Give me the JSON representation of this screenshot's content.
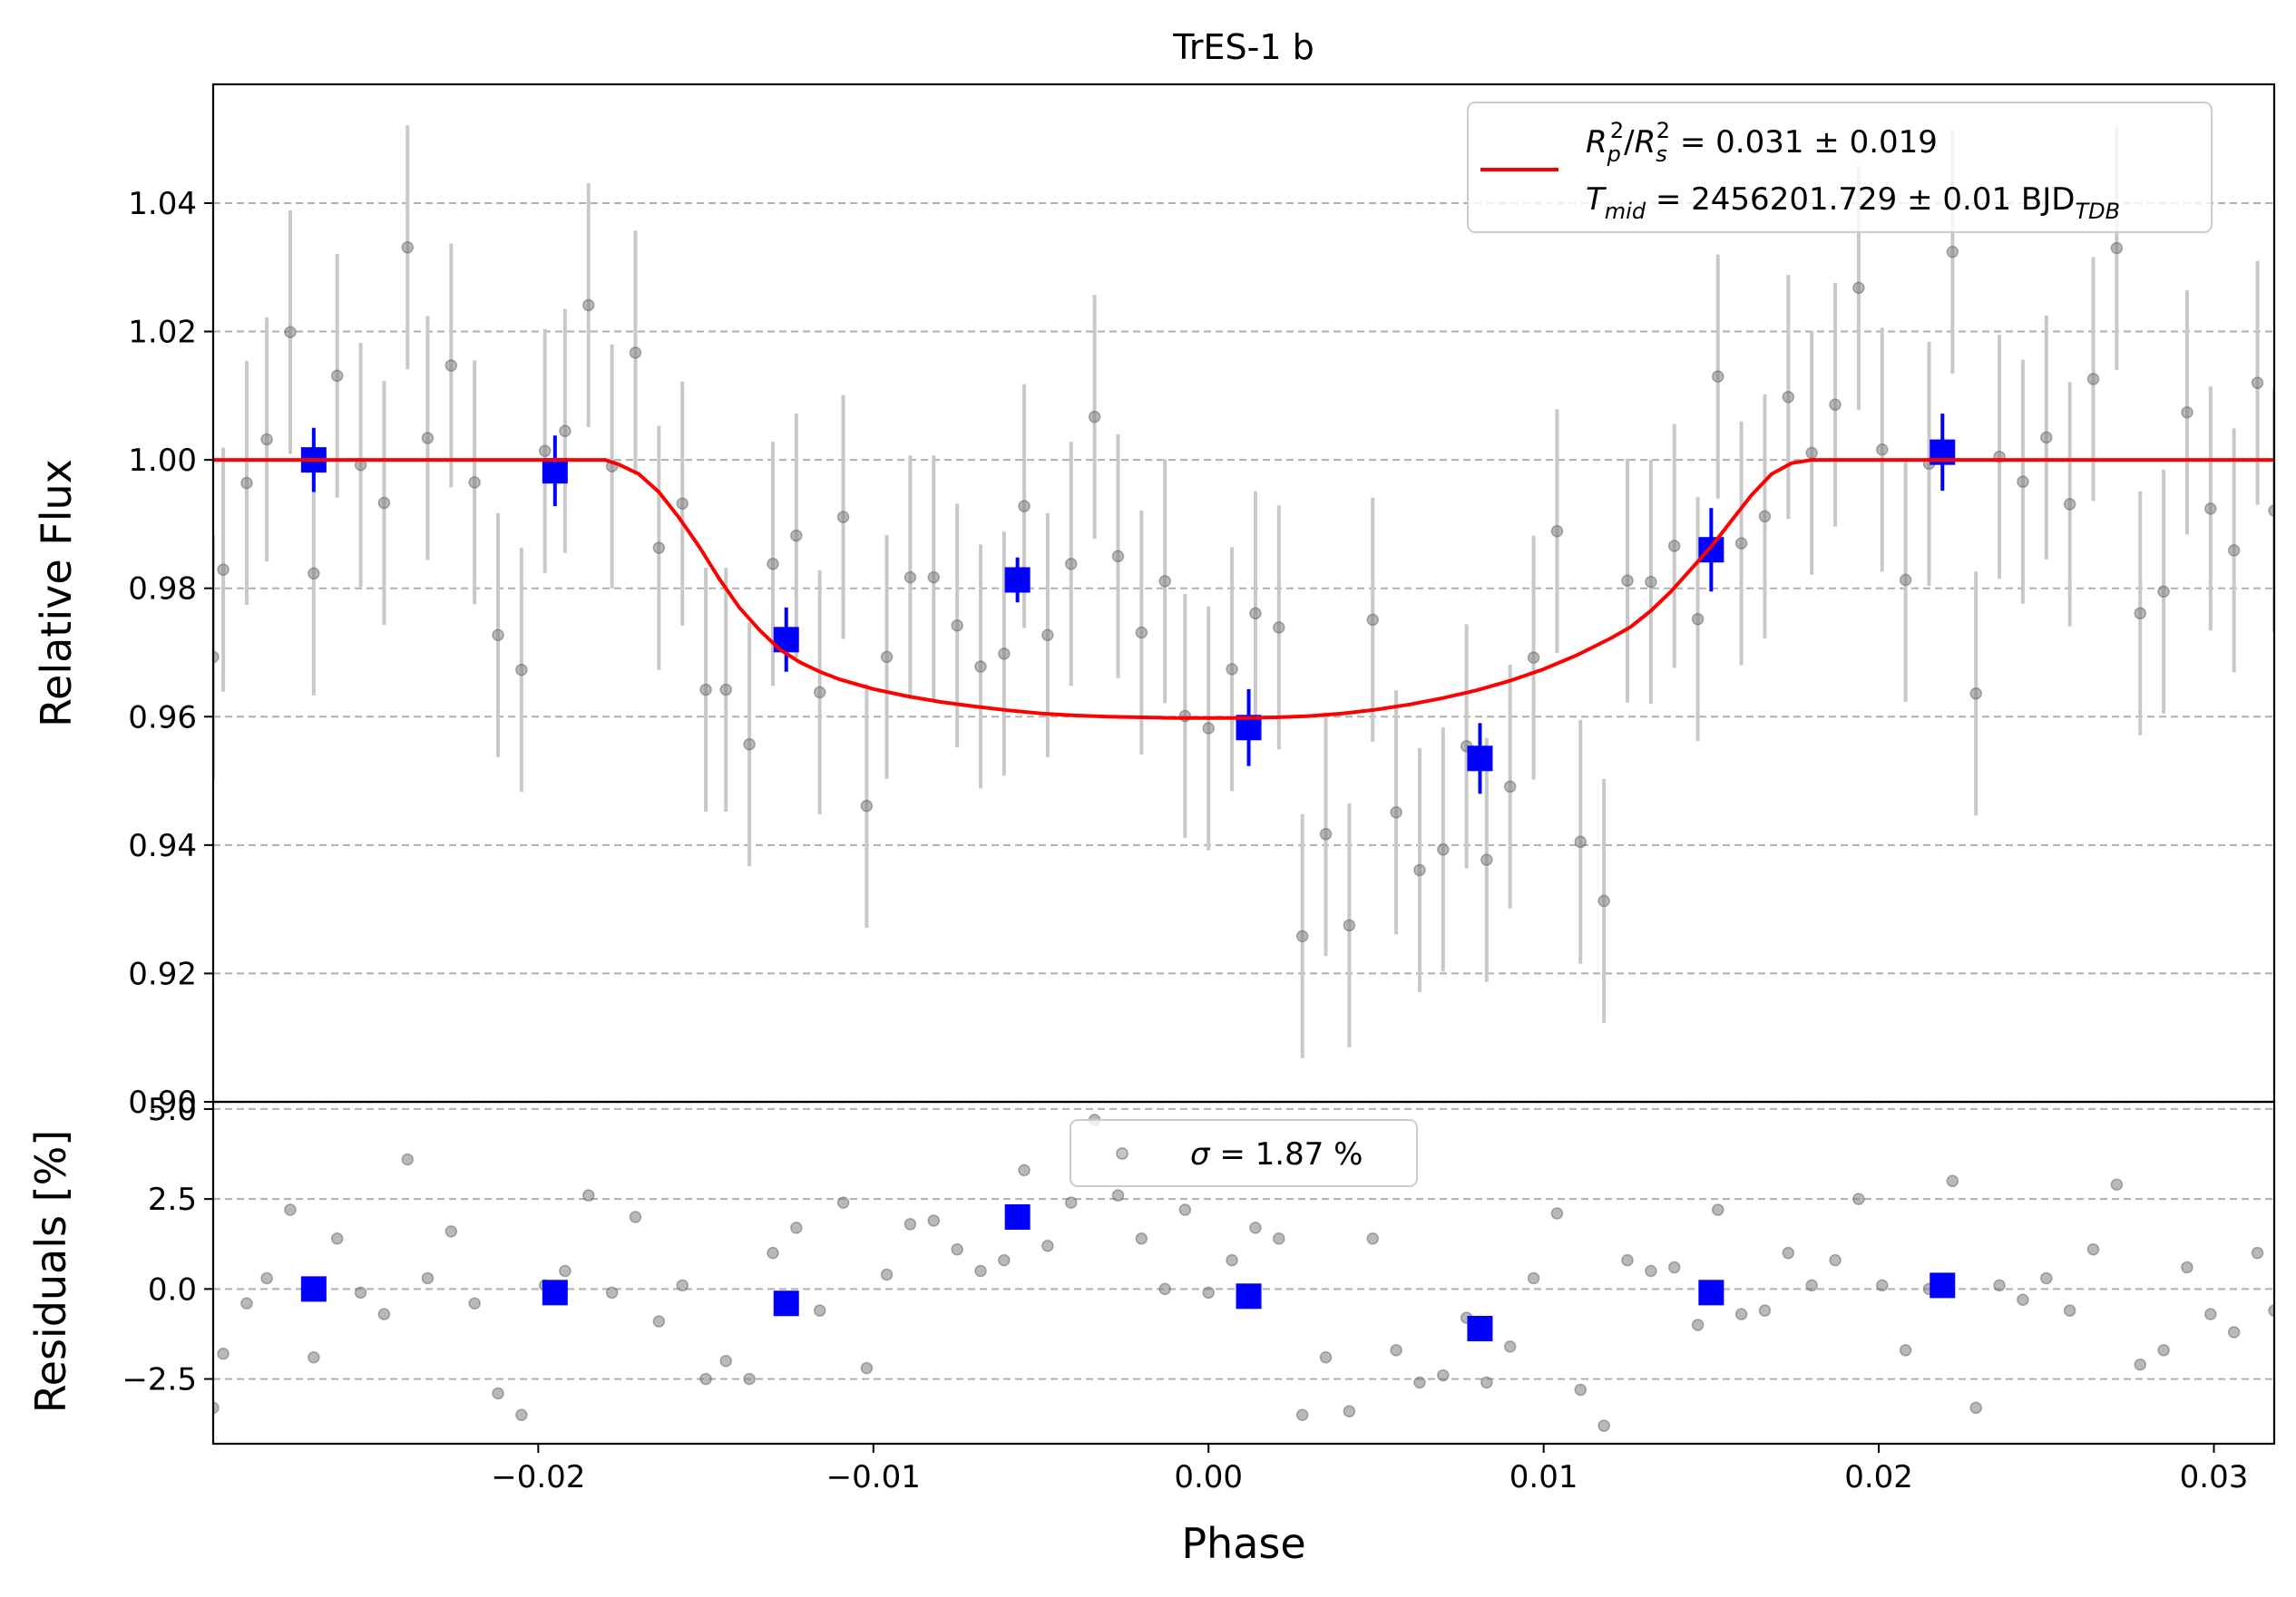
{
  "chart_data": [
    {
      "type": "scatter",
      "title": "TrES-1 b",
      "xlabel": "",
      "ylabel": "Relative Flux",
      "xlim": [
        -0.0297,
        0.0318
      ],
      "ylim": [
        0.9,
        1.0585
      ],
      "x_ticks": [
        -0.02,
        -0.01,
        0.0,
        0.01,
        0.02,
        0.03
      ],
      "y_ticks": [
        0.9,
        0.92,
        0.94,
        0.96,
        0.98,
        1.0,
        1.02,
        1.04
      ],
      "y_tick_labels": [
        "0.90",
        "0.92",
        "0.94",
        "0.96",
        "0.98",
        "1.00",
        "1.02",
        "1.04"
      ],
      "grid": "y-dashed",
      "legend": {
        "placement": "upper right",
        "line_color": "#ff0000",
        "line1": {
          "lhs_a": "R",
          "lhs_a_sub": "p",
          "lhs_a_sup": "2",
          "slash": "/",
          "lhs_b": "R",
          "lhs_b_sub": "s",
          "lhs_b_sup": "2",
          "rhs": " = 0.031 ± 0.019"
        },
        "line2": {
          "lhs": "T",
          "lhs_sub": "mid",
          "rhs": " = 2456201.729 ± 0.01 BJD",
          "rhs_sub": "TDB"
        }
      },
      "raw_series": {
        "color": "#808080",
        "errorbar_color": "#c8c8c8",
        "yerr": 0.019,
        "x": [
          -0.0297,
          -0.0294,
          -0.0287,
          -0.0281,
          -0.0274,
          -0.0267,
          -0.026,
          -0.0253,
          -0.0246,
          -0.0239,
          -0.0233,
          -0.0226,
          -0.0219,
          -0.0212,
          -0.0205,
          -0.0198,
          -0.0192,
          -0.0185,
          -0.0178,
          -0.0171,
          -0.0164,
          -0.0157,
          -0.015,
          -0.0144,
          -0.0137,
          -0.013,
          -0.0123,
          -0.0116,
          -0.0109,
          -0.0102,
          -0.0096,
          -0.0089,
          -0.0082,
          -0.0075,
          -0.0068,
          -0.0061,
          -0.0055,
          -0.0048,
          -0.0041,
          -0.0034,
          -0.0027,
          -0.002,
          -0.0013,
          -0.0007,
          0.0,
          0.0007,
          0.0014,
          0.0021,
          0.0028,
          0.0035,
          0.0042,
          0.0049,
          0.0056,
          0.0063,
          0.007,
          0.0077,
          0.0083,
          0.009,
          0.0097,
          0.0104,
          0.0111,
          0.0118,
          0.0125,
          0.0132,
          0.0139,
          0.0146,
          0.0152,
          0.0159,
          0.0166,
          0.0173,
          0.018,
          0.0187,
          0.0194,
          0.0201,
          0.0208,
          0.0215,
          0.0222,
          0.0229,
          0.0236,
          0.0243,
          0.025,
          0.0257,
          0.0264,
          0.0271,
          0.0278,
          0.0285,
          0.0292,
          0.0299,
          0.0306,
          0.0313,
          0.0318
        ],
        "y": [
          0.9693,
          0.9829,
          0.9964,
          1.0032,
          1.0199,
          0.9823,
          1.0131,
          0.9992,
          0.9933,
          1.0331,
          1.0034,
          1.0147,
          0.9965,
          0.9727,
          0.9673,
          1.0014,
          1.0045,
          1.0241,
          0.999,
          1.0167,
          0.9863,
          0.9932,
          0.9642,
          0.9642,
          0.9557,
          0.9838,
          0.9882,
          0.9638,
          0.9911,
          0.9461,
          0.9693,
          0.9817,
          0.9817,
          0.9742,
          0.9678,
          0.9698,
          0.9928,
          0.9727,
          0.9838,
          1.0067,
          0.985,
          0.9731,
          0.9811,
          0.9601,
          0.9582,
          0.9674,
          0.9761,
          0.9739,
          0.9258,
          0.9417,
          0.9275,
          0.9751,
          0.9451,
          0.9361,
          0.9393,
          0.9554,
          0.9377,
          0.9491,
          0.9692,
          0.9889,
          0.9405,
          0.9313,
          0.9812,
          0.981,
          0.9866,
          0.9752,
          1.013,
          0.987,
          0.9912,
          1.0098,
          1.0011,
          1.0086,
          1.0268,
          1.0016,
          0.9813,
          0.9994,
          1.0324,
          0.9636,
          1.0005,
          0.9966,
          1.0035,
          0.9931,
          1.0126,
          1.033,
          0.9761,
          0.9795,
          1.0074,
          0.9924,
          0.9859,
          1.012,
          0.9921
        ]
      },
      "binned_series": {
        "color": "#0000ff",
        "x": [
          -0.0267,
          -0.0195,
          -0.0126,
          -0.0057,
          0.0012,
          0.0081,
          0.015,
          0.0219
        ],
        "y": [
          1.0,
          0.9983,
          0.972,
          0.9813,
          0.9583,
          0.9535,
          0.986,
          1.0012
        ],
        "yerr": [
          0.005,
          0.0055,
          0.005,
          0.0035,
          0.006,
          0.0055,
          0.0065,
          0.006
        ]
      },
      "model_series": {
        "color": "#ff0000",
        "x": [
          -0.0297,
          -0.018,
          -0.0176,
          -0.017,
          -0.0164,
          -0.0158,
          -0.0152,
          -0.0146,
          -0.014,
          -0.0134,
          -0.0128,
          -0.0122,
          -0.0116,
          -0.011,
          -0.01,
          -0.009,
          -0.008,
          -0.007,
          -0.006,
          -0.005,
          -0.004,
          -0.003,
          -0.002,
          -0.001,
          0.0,
          0.001,
          0.002,
          0.003,
          0.004,
          0.005,
          0.006,
          0.007,
          0.008,
          0.009,
          0.01,
          0.011,
          0.012,
          0.0126,
          0.0132,
          0.0138,
          0.0144,
          0.015,
          0.0156,
          0.0162,
          0.0168,
          0.0174,
          0.018,
          0.0318
        ],
        "y": [
          1.0,
          1.0,
          0.9993,
          0.9978,
          0.995,
          0.991,
          0.9865,
          0.9815,
          0.977,
          0.9735,
          0.9705,
          0.9685,
          0.967,
          0.9658,
          0.9643,
          0.9632,
          0.9623,
          0.9616,
          0.961,
          0.9605,
          0.9602,
          0.96,
          0.9599,
          0.9598,
          0.9598,
          0.9598,
          0.9599,
          0.9601,
          0.9605,
          0.9611,
          0.9619,
          0.9629,
          0.9641,
          0.9656,
          0.9674,
          0.9696,
          0.9722,
          0.974,
          0.9765,
          0.9795,
          0.983,
          0.9865,
          0.9905,
          0.9945,
          0.9978,
          0.9995,
          1.0,
          1.0
        ]
      }
    },
    {
      "type": "scatter",
      "title": "",
      "xlabel": "Phase",
      "ylabel": "Residuals [%]",
      "xlim": [
        -0.0297,
        0.0318
      ],
      "ylim": [
        -4.3,
        5.2
      ],
      "x_ticks": [
        -0.02,
        -0.01,
        0.0,
        0.01,
        0.02,
        0.03
      ],
      "x_tick_labels": [
        "−0.02",
        "−0.01",
        "0.00",
        "0.01",
        "0.02",
        "0.03"
      ],
      "y_ticks": [
        -2.5,
        0.0,
        2.5,
        5.0
      ],
      "y_tick_labels": [
        "−2.5",
        "0.0",
        "2.5",
        "5.0"
      ],
      "grid": "y-dashed",
      "legend": {
        "placement": "upper center",
        "marker_color": "#808080",
        "label_symbol": "σ",
        "label_rest": " = 1.87 %"
      },
      "raw_series": {
        "color": "#808080",
        "x": [
          -0.0297,
          -0.0294,
          -0.0287,
          -0.0281,
          -0.0274,
          -0.0267,
          -0.026,
          -0.0253,
          -0.0246,
          -0.0239,
          -0.0233,
          -0.0226,
          -0.0219,
          -0.0212,
          -0.0205,
          -0.0198,
          -0.0192,
          -0.0185,
          -0.0178,
          -0.0171,
          -0.0164,
          -0.0157,
          -0.015,
          -0.0144,
          -0.0137,
          -0.013,
          -0.0123,
          -0.0116,
          -0.0109,
          -0.0102,
          -0.0096,
          -0.0089,
          -0.0082,
          -0.0075,
          -0.0068,
          -0.0061,
          -0.0055,
          -0.0048,
          -0.0041,
          -0.0034,
          -0.0027,
          -0.002,
          -0.0013,
          -0.0007,
          0.0,
          0.0007,
          0.0014,
          0.0021,
          0.0028,
          0.0035,
          0.0042,
          0.0049,
          0.0056,
          0.0063,
          0.007,
          0.0077,
          0.0083,
          0.009,
          0.0097,
          0.0104,
          0.0111,
          0.0118,
          0.0125,
          0.0132,
          0.0139,
          0.0146,
          0.0152,
          0.0159,
          0.0166,
          0.0173,
          0.018,
          0.0187,
          0.0194,
          0.0201,
          0.0208,
          0.0215,
          0.0222,
          0.0229,
          0.0236,
          0.0243,
          0.025,
          0.0257,
          0.0264,
          0.0271,
          0.0278,
          0.0285,
          0.0292,
          0.0299,
          0.0306,
          0.0313,
          0.0318
        ],
        "y": [
          -3.3,
          -1.8,
          -0.4,
          0.3,
          2.2,
          -1.9,
          1.4,
          -0.1,
          -0.7,
          3.6,
          0.3,
          1.6,
          -0.4,
          -2.9,
          -3.5,
          0.1,
          0.5,
          2.6,
          -0.1,
          2.0,
          -0.9,
          0.1,
          -2.5,
          -2.0,
          -2.5,
          1.0,
          1.7,
          -0.6,
          2.4,
          -2.2,
          0.4,
          1.8,
          1.9,
          1.1,
          0.5,
          0.8,
          3.3,
          1.2,
          2.4,
          4.7,
          2.6,
          1.4,
          0.0,
          2.2,
          -0.1,
          0.8,
          1.7,
          1.4,
          -3.5,
          -1.9,
          -3.4,
          1.4,
          -1.7,
          -2.6,
          -2.4,
          -0.8,
          -2.6,
          -1.6,
          0.3,
          2.1,
          -2.8,
          -3.8,
          0.8,
          0.5,
          0.6,
          -1.0,
          2.2,
          -0.7,
          -0.6,
          1.0,
          0.1,
          0.8,
          2.5,
          0.1,
          -1.7,
          0.0,
          3.0,
          -3.3,
          0.1,
          -0.3,
          0.3,
          -0.6,
          1.1,
          2.9,
          -2.1,
          -1.7,
          0.6,
          -0.7,
          -1.2,
          1.0,
          -0.6
        ]
      },
      "binned_series": {
        "color": "#0000ff",
        "x": [
          -0.0267,
          -0.0195,
          -0.0126,
          -0.0057,
          0.0012,
          0.0081,
          0.015,
          0.0219
        ],
        "y": [
          0.0,
          -0.1,
          -0.4,
          2.0,
          -0.2,
          -1.1,
          -0.1,
          0.1
        ]
      }
    }
  ]
}
